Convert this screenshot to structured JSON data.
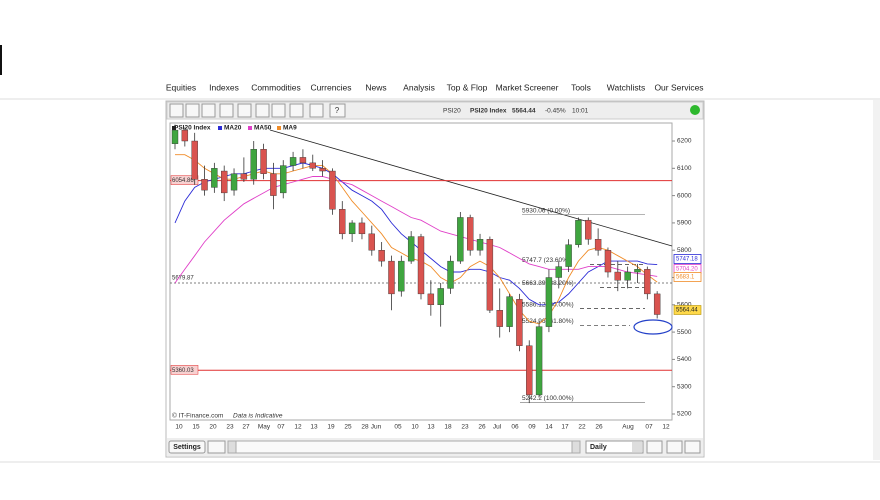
{
  "nav": [
    "Equities",
    "Indexes",
    "Commodities",
    "Currencies",
    "News",
    "Analysis",
    "Top & Flop",
    "Market Screener",
    "Tools",
    "Watchlists",
    "Our Services"
  ],
  "toolbar": {
    "symbol": "PSI20",
    "name": "PSI20 Index",
    "price": "5564.44",
    "change": "-0.45%",
    "time": "10:01"
  },
  "footer": {
    "settings": "Settings",
    "period": "Daily"
  },
  "chart_data": {
    "type": "candlestick",
    "credit": "© IT-Finance.com",
    "note": "Data is Indicative",
    "x_labels": [
      "10",
      "15",
      "20",
      "23",
      "27",
      "May",
      "07",
      "12",
      "13",
      "19",
      "25",
      "28",
      "Jun",
      "05",
      "10",
      "13",
      "18",
      "23",
      "26",
      "Jul",
      "06",
      "09",
      "14",
      "17",
      "22",
      "26",
      "Aug",
      "07",
      "12"
    ],
    "candles": {
      "name": "PSI20 Index",
      "up_color": "#3fa53f",
      "down_color": "#d9534f",
      "open": [
        6190,
        6240,
        6200,
        6060,
        6030,
        6090,
        6020,
        6080,
        6060,
        6170,
        6080,
        6010,
        6110,
        6140,
        6120,
        6100,
        6090,
        5950,
        5860,
        5900,
        5860,
        5800,
        5760,
        5650,
        5760,
        5850,
        5640,
        5600,
        5660,
        5760,
        5920,
        5800,
        5840,
        5580,
        5520,
        5620,
        5450,
        5270,
        5520,
        5700,
        5740,
        5820,
        5910,
        5840,
        5800,
        5720,
        5690,
        5720,
        5730,
        5640
      ],
      "high": [
        6260,
        6250,
        6230,
        6110,
        6120,
        6110,
        6100,
        6140,
        6200,
        6190,
        6120,
        6130,
        6160,
        6170,
        6150,
        6130,
        6100,
        5980,
        5910,
        5920,
        5890,
        5830,
        5780,
        5780,
        5870,
        5860,
        5690,
        5680,
        5780,
        5940,
        5930,
        5860,
        5850,
        5660,
        5640,
        5640,
        5470,
        5540,
        5730,
        5760,
        5840,
        5920,
        5920,
        5880,
        5810,
        5760,
        5740,
        5750,
        5740,
        5650
      ],
      "low": [
        6170,
        6180,
        6040,
        6000,
        6010,
        5980,
        6000,
        6050,
        6040,
        6060,
        5950,
        5990,
        6090,
        6100,
        6090,
        6070,
        5930,
        5840,
        5830,
        5840,
        5780,
        5740,
        5580,
        5630,
        5750,
        5620,
        5560,
        5520,
        5640,
        5750,
        5780,
        5780,
        5570,
        5480,
        5500,
        5430,
        5240,
        5260,
        5500,
        5660,
        5720,
        5810,
        5820,
        5780,
        5700,
        5650,
        5660,
        5680,
        5620,
        5550
      ],
      "close": [
        6240,
        6200,
        6060,
        6020,
        6100,
        6010,
        6080,
        6060,
        6170,
        6080,
        6000,
        6110,
        6140,
        6120,
        6100,
        6090,
        5950,
        5860,
        5900,
        5860,
        5800,
        5760,
        5640,
        5760,
        5850,
        5640,
        5600,
        5660,
        5760,
        5920,
        5800,
        5840,
        5580,
        5520,
        5630,
        5450,
        5270,
        5520,
        5700,
        5740,
        5820,
        5910,
        5840,
        5800,
        5720,
        5690,
        5720,
        5730,
        5640,
        5564.44
      ]
    },
    "series": [
      {
        "name": "MA20",
        "color": "#2b2bd6",
        "last_label": "5747.18",
        "values": [
          5900,
          5980,
          6030,
          6050,
          6060,
          6070,
          6080,
          6080,
          6090,
          6100,
          6100,
          6100,
          6110,
          6120,
          6110,
          6100,
          6080,
          6050,
          6020,
          6000,
          5980,
          5950,
          5900,
          5860,
          5830,
          5800,
          5770,
          5740,
          5720,
          5720,
          5730,
          5730,
          5720,
          5700,
          5690,
          5660,
          5620,
          5600,
          5600,
          5610,
          5640,
          5680,
          5720,
          5740,
          5760,
          5760,
          5760,
          5760,
          5750,
          5747.18
        ]
      },
      {
        "name": "MA50",
        "color": "#e040c8",
        "last_label": "5704.20",
        "values": [
          5680,
          5730,
          5780,
          5830,
          5870,
          5910,
          5940,
          5970,
          5990,
          6010,
          6030,
          6040,
          6050,
          6060,
          6070,
          6070,
          6060,
          6050,
          6040,
          6020,
          6000,
          5980,
          5960,
          5940,
          5920,
          5910,
          5890,
          5870,
          5860,
          5850,
          5840,
          5830,
          5820,
          5810,
          5790,
          5770,
          5750,
          5740,
          5730,
          5730,
          5730,
          5730,
          5740,
          5740,
          5740,
          5730,
          5720,
          5715,
          5710,
          5704.2
        ]
      },
      {
        "name": "MA9",
        "color": "#f08c28",
        "last_label": "5683.1",
        "values": [
          6150,
          6150,
          6130,
          6100,
          6080,
          6060,
          6060,
          6070,
          6080,
          6090,
          6080,
          6080,
          6090,
          6100,
          6110,
          6110,
          6080,
          6030,
          5980,
          5940,
          5900,
          5860,
          5810,
          5790,
          5770,
          5760,
          5740,
          5700,
          5680,
          5700,
          5740,
          5760,
          5740,
          5700,
          5640,
          5580,
          5540,
          5530,
          5560,
          5620,
          5700,
          5760,
          5800,
          5810,
          5800,
          5780,
          5760,
          5740,
          5710,
          5683.1
        ]
      }
    ],
    "levels": [
      {
        "value": 6054.86,
        "color": "#e03030",
        "style": "solid"
      },
      {
        "value": 5679.87,
        "color": "#555555",
        "style": "dashed"
      },
      {
        "value": 5360.03,
        "color": "#e03030",
        "style": "solid"
      }
    ],
    "fib_levels": [
      {
        "value": 5930.06,
        "label": "5930.06 (0.00%)"
      },
      {
        "value": 5747.7,
        "label": "5747.7 (23.60%)"
      },
      {
        "value": 5663.39,
        "label": "5663.39 (38.20%)"
      },
      {
        "value": 5586.12,
        "label": "5586.12 (50.00%)"
      },
      {
        "value": 5524.96,
        "label": "5524.96 (61.80%)"
      },
      {
        "value": 5242.2,
        "label": "5242.2 (100.00%)"
      }
    ],
    "ylim": [
      5178,
      6266
    ],
    "yticks": [
      5200,
      5300,
      5400,
      5500,
      5600,
      5700,
      5800,
      5900,
      6000,
      6100,
      6200
    ],
    "grid": false
  }
}
